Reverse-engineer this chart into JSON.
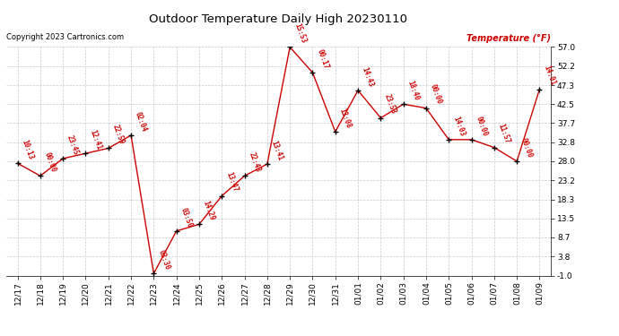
{
  "title": "Outdoor Temperature Daily High 20230110",
  "copyright": "Copyright 2023 Cartronics.com",
  "ylabel": "Temperature (°F)",
  "x_labels": [
    "12/17",
    "12/18",
    "12/19",
    "12/20",
    "12/21",
    "12/22",
    "12/23",
    "12/24",
    "12/25",
    "12/26",
    "12/27",
    "12/28",
    "12/29",
    "12/30",
    "12/31",
    "01/01",
    "01/02",
    "01/03",
    "01/04",
    "01/05",
    "01/06",
    "01/07",
    "01/08",
    "01/09"
  ],
  "y_values": [
    27.5,
    24.3,
    28.7,
    30.0,
    31.3,
    34.6,
    -0.5,
    10.3,
    12.0,
    19.2,
    24.3,
    27.3,
    57.0,
    50.5,
    35.5,
    46.0,
    39.0,
    42.5,
    41.5,
    33.5,
    33.5,
    31.5,
    28.0,
    46.3
  ],
  "point_labels": [
    "10:13",
    "00:00",
    "23:45",
    "12:41",
    "22:59",
    "02:04",
    "03:30",
    "03:50",
    "14:29",
    "13:47",
    "22:43",
    "13:41",
    "15:53",
    "00:17",
    "13:08",
    "14:43",
    "23:53",
    "18:40",
    "00:00",
    "14:03",
    "00:00",
    "11:57",
    "00:00",
    "14:01"
  ],
  "line_color": "#cc0000",
  "marker_color": "#000000",
  "background_color": "#ffffff",
  "grid_color": "#bbbbbb",
  "title_color": "#000000",
  "label_color": "#cc0000",
  "copyright_color": "#000000",
  "ylabel_color": "#cc0000",
  "ylim": [
    -1.0,
    57.0
  ],
  "yticks": [
    -1.0,
    3.8,
    8.7,
    13.5,
    18.3,
    23.2,
    28.0,
    32.8,
    37.7,
    42.5,
    47.3,
    52.2,
    57.0
  ],
  "figsize": [
    6.9,
    3.75
  ],
  "dpi": 100
}
